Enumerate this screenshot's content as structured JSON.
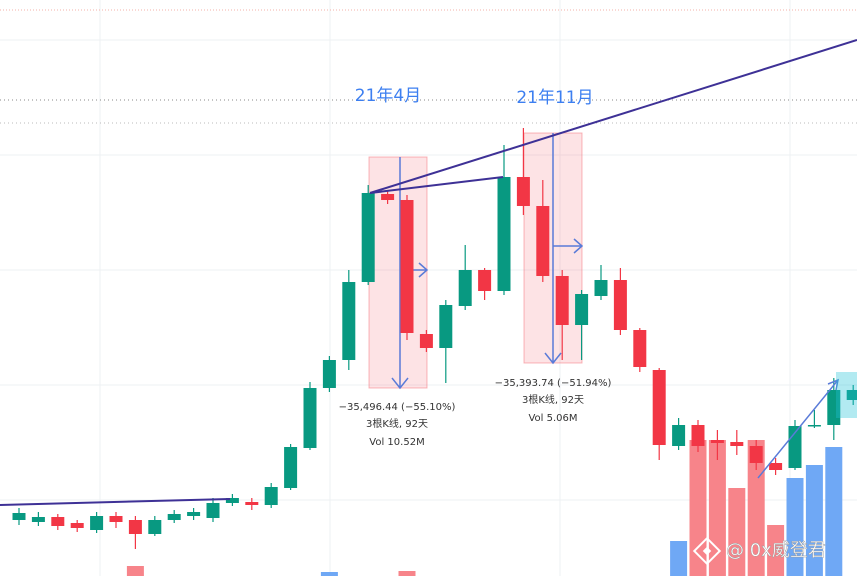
{
  "chart_data": {
    "type": "candlestick",
    "ylim": [
      3100,
      89500
    ],
    "up_color": "#089981",
    "down_color": "#f23645",
    "open": [
      11500,
      11200,
      11950,
      11050,
      10000,
      12100,
      11500,
      9400,
      11500,
      12100,
      11800,
      14050,
      14200,
      13750,
      16300,
      22300,
      31300,
      35500,
      47200,
      60400,
      59500,
      39400,
      37300,
      43600,
      49000,
      45850,
      62950,
      58600,
      48100,
      40750,
      45100,
      47500,
      40000,
      34000,
      22600,
      25750,
      23500,
      23200,
      22600,
      20050,
      19300,
      25600,
      25750,
      29500
    ],
    "high": [
      13300,
      12700,
      12400,
      11500,
      12700,
      12700,
      12100,
      12100,
      13000,
      13300,
      14800,
      15400,
      14800,
      17050,
      22900,
      32200,
      36100,
      49000,
      61750,
      61000,
      60250,
      40000,
      44500,
      52750,
      49300,
      67750,
      70300,
      62500,
      49000,
      46000,
      49750,
      49300,
      40300,
      34300,
      26800,
      26500,
      25000,
      25000,
      23500,
      20800,
      26500,
      28000,
      32800,
      31750
    ],
    "low": [
      10750,
      10600,
      10000,
      9700,
      9550,
      10300,
      7150,
      9100,
      11050,
      11500,
      11200,
      13600,
      13000,
      13300,
      16000,
      22000,
      30700,
      34000,
      46750,
      58900,
      38500,
      36700,
      32050,
      43000,
      44500,
      45250,
      57250,
      47200,
      35500,
      35500,
      44500,
      39250,
      33700,
      20500,
      22000,
      21700,
      20500,
      21250,
      19000,
      18250,
      19000,
      25300,
      23500,
      28750
    ],
    "close": [
      12550,
      11950,
      10600,
      10300,
      12100,
      11200,
      9400,
      11500,
      12400,
      12700,
      14050,
      14800,
      13750,
      16450,
      22450,
      31300,
      35500,
      47200,
      60550,
      59500,
      39550,
      37300,
      43750,
      49000,
      45850,
      62950,
      58600,
      48100,
      40750,
      45400,
      47500,
      40000,
      34450,
      22750,
      25750,
      22600,
      23050,
      22600,
      20050,
      19000,
      25600,
      25750,
      31000,
      31000
    ],
    "volume": [
      null,
      null,
      null,
      null,
      null,
      null,
      10,
      null,
      null,
      null,
      null,
      null,
      null,
      null,
      null,
      null,
      4,
      null,
      null,
      null,
      5,
      null,
      null,
      null,
      null,
      null,
      null,
      null,
      null,
      null,
      null,
      null,
      null,
      null,
      35,
      136,
      136,
      88,
      136,
      51,
      98,
      111,
      129,
      null
    ],
    "volume_ylim": [
      0,
      200
    ],
    "volume_up_color": "#6fa8f5",
    "volume_down_color": "#f7848a",
    "annotations": [
      "21年4月",
      "21年11月"
    ],
    "measures": [
      {
        "change": "−35,496.44 (−55.10%)",
        "bars": "3根K线, 92天",
        "vol": "Vol 10.52M"
      },
      {
        "change": "−35,393.74 (−51.94%)",
        "bars": "3根K线, 92天",
        "vol": "Vol 5.06M"
      }
    ],
    "watermark": "@ 0x威登君"
  }
}
